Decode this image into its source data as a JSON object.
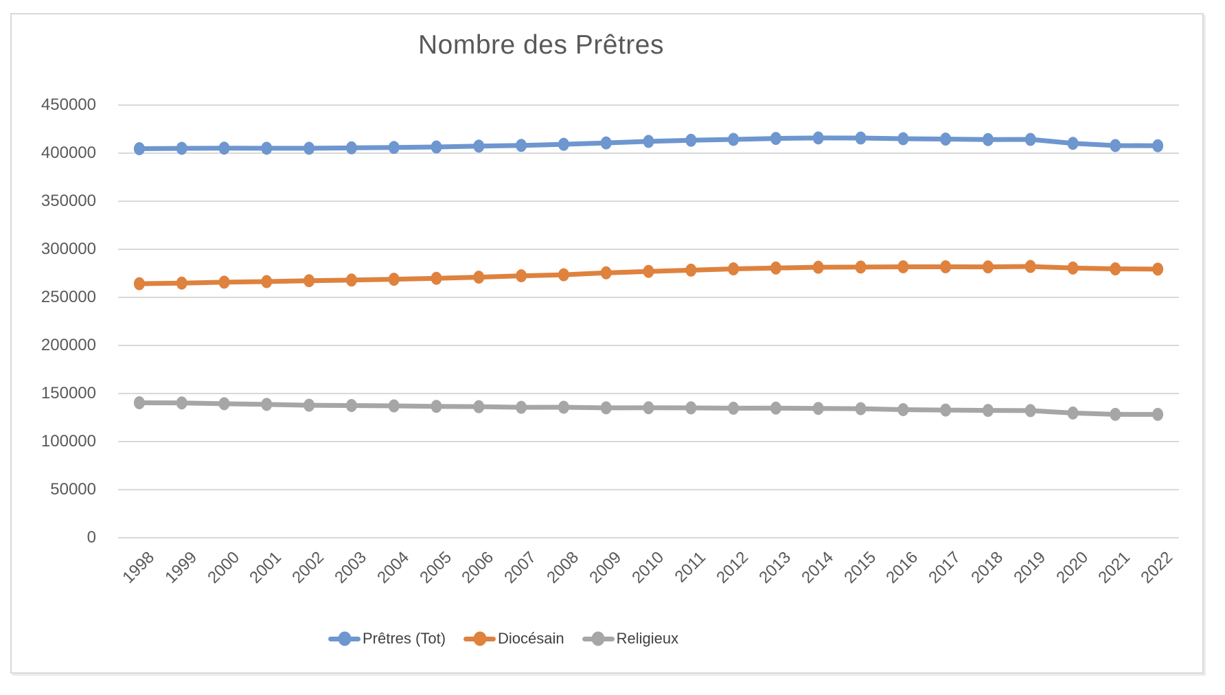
{
  "chart_data": {
    "type": "line",
    "title": "Nombre des Prêtres",
    "xlabel": "",
    "ylabel": "",
    "x_categories": [
      "1998",
      "1999",
      "2000",
      "2001",
      "2002",
      "2003",
      "2004",
      "2005",
      "2006",
      "2007",
      "2008",
      "2009",
      "2010",
      "2011",
      "2012",
      "2013",
      "2014",
      "2015",
      "2016",
      "2017",
      "2018",
      "2019",
      "2020",
      "2021",
      "2022"
    ],
    "series": [
      {
        "name": "Prêtres (Tot)",
        "color": "#6E96CF",
        "values": [
          404600,
          405000,
          405200,
          405100,
          405100,
          405500,
          405900,
          406400,
          407300,
          408000,
          409200,
          410600,
          412200,
          413400,
          414300,
          415300,
          415800,
          415700,
          415000,
          414600,
          414100,
          414300,
          410200,
          407900,
          407700
        ]
      },
      {
        "name": "Diocésain",
        "color": "#DE823E",
        "values": [
          264200,
          264800,
          265800,
          266400,
          267300,
          268000,
          268800,
          269800,
          271000,
          272400,
          273500,
          275500,
          277000,
          278300,
          279600,
          280500,
          281300,
          281500,
          281800,
          281800,
          281700,
          282100,
          280500,
          279600,
          279400
        ]
      },
      {
        "name": "Religieux",
        "color": "#A6A6A6",
        "values": [
          140400,
          140200,
          139400,
          138700,
          137800,
          137500,
          137100,
          136600,
          136300,
          135600,
          135700,
          135100,
          135200,
          135100,
          134700,
          134800,
          134500,
          134200,
          133200,
          132800,
          132400,
          132200,
          129700,
          128300,
          128300
        ]
      }
    ],
    "y_ticks": [
      0,
      50000,
      100000,
      150000,
      200000,
      250000,
      300000,
      350000,
      400000,
      450000
    ],
    "ylim": [
      0,
      450000
    ],
    "grid": true,
    "legend_position": "bottom",
    "grid_color": "#D9D9D9",
    "text_color": "#595959"
  }
}
